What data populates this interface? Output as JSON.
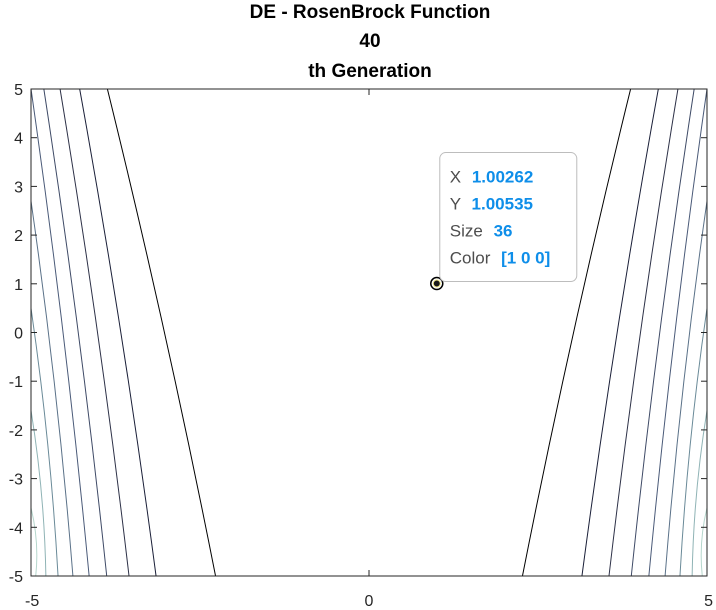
{
  "chart_data": {
    "type": "contour",
    "title_lines": [
      "DE - RosenBrock Function",
      "40",
      "th Generation"
    ],
    "xlim": [
      -5,
      5
    ],
    "ylim": [
      -5,
      5
    ],
    "x_ticks": [
      "-5",
      "0",
      "5"
    ],
    "y_ticks": [
      "5",
      "4",
      "3",
      "2",
      "1",
      "0",
      "-1",
      "-2",
      "-3",
      "-4",
      "-5"
    ],
    "grid": false,
    "contour_curves": [
      {
        "side": "left",
        "color": "#000000",
        "points": [
          [
            -3.87,
            5
          ],
          [
            -2.27,
            -5
          ]
        ]
      },
      {
        "side": "left",
        "color": "#1a1f38",
        "points": [
          [
            -4.28,
            5
          ],
          [
            -3.15,
            -5
          ]
        ]
      },
      {
        "side": "left",
        "color": "#2d3147",
        "points": [
          [
            -4.57,
            5
          ],
          [
            -3.55,
            -5
          ]
        ]
      },
      {
        "side": "left",
        "color": "#3e4a66",
        "points": [
          [
            -4.81,
            5
          ],
          [
            -3.88,
            -5
          ]
        ]
      },
      {
        "side": "left",
        "color": "#4a5a78",
        "points": [
          [
            -5.0,
            5
          ],
          [
            -4.14,
            -5
          ]
        ]
      },
      {
        "side": "left",
        "color": "#5a7188",
        "points": [
          [
            -5.0,
            2.7
          ],
          [
            -4.38,
            -5
          ]
        ]
      },
      {
        "side": "left",
        "color": "#6a8a98",
        "points": [
          [
            -5.0,
            0.5
          ],
          [
            -4.6,
            -5
          ]
        ]
      },
      {
        "side": "left",
        "color": "#8fb3b5",
        "points": [
          [
            -5.0,
            -1.6
          ],
          [
            -4.78,
            -5
          ]
        ]
      },
      {
        "side": "left",
        "color": "#b5d6cc",
        "points": [
          [
            -5.0,
            -3.6
          ],
          [
            -4.93,
            -5
          ]
        ]
      },
      {
        "side": "right",
        "color": "#000000",
        "points": [
          [
            3.87,
            5
          ],
          [
            2.27,
            -5
          ]
        ]
      },
      {
        "side": "right",
        "color": "#1a1f38",
        "points": [
          [
            4.28,
            5
          ],
          [
            3.15,
            -5
          ]
        ]
      },
      {
        "side": "right",
        "color": "#2d3147",
        "points": [
          [
            4.57,
            5
          ],
          [
            3.55,
            -5
          ]
        ]
      },
      {
        "side": "right",
        "color": "#3e4a66",
        "points": [
          [
            4.81,
            5
          ],
          [
            3.88,
            -5
          ]
        ]
      },
      {
        "side": "right",
        "color": "#4a5a78",
        "points": [
          [
            5.0,
            5
          ],
          [
            4.14,
            -5
          ]
        ]
      },
      {
        "side": "right",
        "color": "#5a7188",
        "points": [
          [
            5.0,
            2.7
          ],
          [
            4.38,
            -5
          ]
        ]
      },
      {
        "side": "right",
        "color": "#6a8a98",
        "points": [
          [
            5.0,
            0.5
          ],
          [
            4.6,
            -5
          ]
        ]
      },
      {
        "side": "right",
        "color": "#8fb3b5",
        "points": [
          [
            5.0,
            -1.6
          ],
          [
            4.78,
            -5
          ]
        ]
      },
      {
        "side": "right",
        "color": "#b5d6cc",
        "points": [
          [
            5.0,
            -3.6
          ],
          [
            4.93,
            -5
          ]
        ]
      }
    ],
    "scatter_point": {
      "x": 1.00262,
      "y": 1.00535,
      "size": 36,
      "color": "#ff0000"
    },
    "datatip": {
      "x_label": "X",
      "x_value": "1.00262",
      "y_label": "Y",
      "y_value": "1.00535",
      "size_label": "Size",
      "size_value": "36",
      "color_label": "Color",
      "color_value": "[1 0 0]"
    }
  }
}
